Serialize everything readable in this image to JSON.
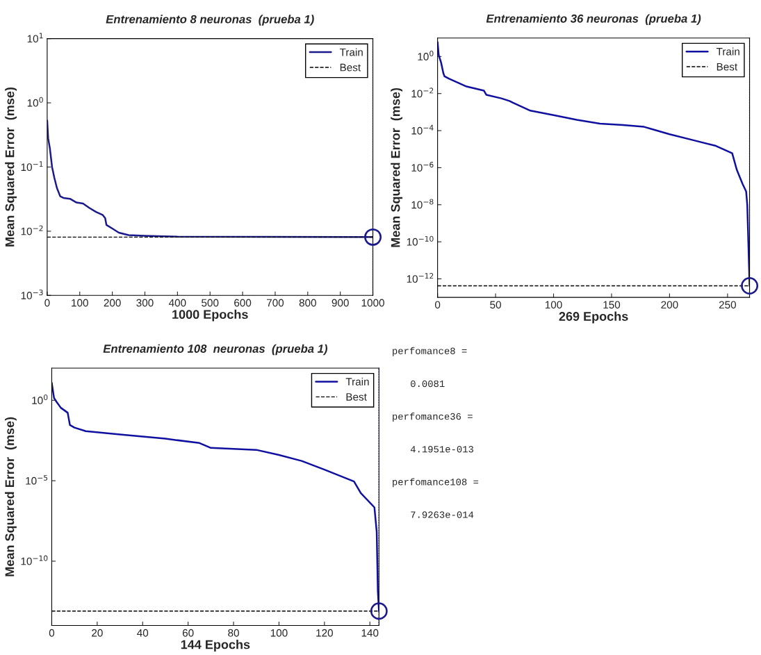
{
  "chart_data": [
    {
      "type": "line",
      "title": "Entrenamiento 8 neuronas  (prueba 1)",
      "xlabel": "1000 Epochs",
      "ylabel": "Mean Squared Error  (mse)",
      "log": "y",
      "legend": "top right",
      "xlim": [
        0,
        1000
      ],
      "xticks": [
        0,
        100,
        200,
        300,
        400,
        500,
        600,
        700,
        800,
        900,
        1000
      ],
      "ylim": [
        0.001,
        10
      ],
      "yticks": [
        {
          "value": 0.001,
          "label": "10$^{−3}$"
        },
        {
          "value": 0.01,
          "label": "10$^{−2}$"
        },
        {
          "value": 0.1,
          "label": "10$^{−1}$"
        },
        {
          "value": 1,
          "label": "10$^{0}$"
        },
        {
          "value": 10,
          "label": "10$^{1}$"
        }
      ],
      "series": [
        {
          "name": "Train",
          "type": "line",
          "color": "#1a1a8c",
          "x": [
            0,
            3,
            8,
            15,
            22,
            30,
            40,
            50,
            70,
            90,
            110,
            130,
            150,
            170,
            178,
            182,
            200,
            220,
            250,
            300,
            400,
            1000
          ],
          "values": [
            0.53,
            0.28,
            0.2,
            0.1,
            0.068,
            0.047,
            0.035,
            0.033,
            0.032,
            0.028,
            0.027,
            0.023,
            0.02,
            0.018,
            0.016,
            0.0125,
            0.011,
            0.0095,
            0.0087,
            0.0085,
            0.0082,
            0.0081
          ]
        },
        {
          "type": "scatter",
          "marker": "circle",
          "color": "#1a1a8c",
          "x": [
            1000
          ],
          "values": [
            0.0081
          ]
        }
      ],
      "ref_lines": [
        {
          "axis": "y",
          "value": 0.0081,
          "label": "Best",
          "color": "#000000",
          "line_style": "dashed"
        },
        {
          "axis": "x",
          "value": 1000,
          "color": "#000080",
          "line_style": "dotted"
        }
      ]
    },
    {
      "type": "line",
      "title": "Entrenamiento 36 neuronas  (prueba 1)",
      "xlabel": "269 Epochs",
      "ylabel": "Mean Squared Error  (mse)",
      "log": "y",
      "legend": "top right",
      "xlim": [
        0,
        269
      ],
      "xticks": [
        0,
        50,
        100,
        150,
        200,
        250
      ],
      "ylim": [
        1e-13,
        10
      ],
      "yticks": [
        {
          "value": 1e-12,
          "label": "10$^{−12}$"
        },
        {
          "value": 1e-10,
          "label": "10$^{−10}$"
        },
        {
          "value": 1e-08,
          "label": "10$^{−8}$"
        },
        {
          "value": 1e-06,
          "label": "10$^{−6}$"
        },
        {
          "value": 0.0001,
          "label": "10$^{−4}$"
        },
        {
          "value": 0.01,
          "label": "10$^{−2}$"
        },
        {
          "value": 1,
          "label": "10$^{0}$"
        }
      ],
      "series": [
        {
          "name": "Train",
          "type": "line",
          "color": "#1010a0",
          "x": [
            0,
            1,
            3,
            5,
            6,
            10,
            20,
            25,
            40,
            42,
            55,
            62,
            65,
            80,
            100,
            120,
            140,
            160,
            178,
            185,
            200,
            220,
            240,
            254,
            258,
            263,
            266,
            267,
            269
          ],
          "values": [
            5.9,
            1.2,
            0.48,
            0.125,
            0.085,
            0.063,
            0.033,
            0.024,
            0.0143,
            0.0086,
            0.0055,
            0.004,
            0.0032,
            0.0012,
            0.00069,
            0.00038,
            0.00024,
            0.0002,
            0.00016,
            0.00012,
            6.4e-05,
            3.1e-05,
            1.5e-05,
            6e-06,
            7.6e-07,
            1.3e-07,
            5.3e-08,
            1e-08,
            4.1951e-13
          ]
        },
        {
          "type": "scatter",
          "marker": "circle",
          "color": "#1a1a8c",
          "x": [
            269
          ],
          "values": [
            4.1951e-13
          ]
        }
      ],
      "ref_lines": [
        {
          "axis": "y",
          "value": 4.1951e-13,
          "label": "Best",
          "color": "#000000",
          "line_style": "dashed"
        },
        {
          "axis": "x",
          "value": 269,
          "color": "#000080",
          "line_style": "dotted"
        }
      ]
    },
    {
      "type": "line",
      "title": "Entrenamiento 108  neuronas  (prueba 1)",
      "xlabel": "144 Epochs",
      "ylabel": "Mean Squared Error  (mse)",
      "log": "y",
      "legend": "top right",
      "xlim": [
        0,
        144
      ],
      "xticks": [
        0,
        20,
        40,
        60,
        80,
        100,
        120,
        140
      ],
      "ylim": [
        1e-14,
        100
      ],
      "yticks": [
        {
          "value": 1e-10,
          "label": "10$^{−10}$"
        },
        {
          "value": 1e-05,
          "label": "10$^{−5}$"
        },
        {
          "value": 1,
          "label": "10$^{0}$"
        }
      ],
      "series": [
        {
          "name": "Train",
          "type": "line",
          "color": "#1010a0",
          "x": [
            0,
            1,
            2,
            4,
            7,
            8,
            10,
            15,
            30,
            50,
            65,
            70,
            90,
            100,
            110,
            120,
            133,
            136,
            142,
            143,
            143.5,
            144
          ],
          "values": [
            12,
            1.4,
            0.84,
            0.34,
            0.17,
            0.029,
            0.02,
            0.012,
            0.0075,
            0.0041,
            0.0022,
            0.0011,
            0.00083,
            0.0004,
            0.00017,
            4.9e-05,
            9e-06,
            1.7e-06,
            2.2e-07,
            6.6e-09,
            1.4e-12,
            7.9263e-14
          ]
        },
        {
          "type": "scatter",
          "marker": "circle",
          "color": "#1a1a8c",
          "x": [
            144
          ],
          "values": [
            7.9263e-14
          ]
        }
      ],
      "ref_lines": [
        {
          "axis": "y",
          "value": 7.9263e-14,
          "label": "Best",
          "color": "#000000",
          "line_style": "dashed"
        },
        {
          "axis": "x",
          "value": 144,
          "color": "#000080",
          "line_style": "dotted"
        }
      ]
    },
    {
      "type": "other",
      "annotations": [
        "perfomance8 =",
        "0.0081",
        "perfomance36 =",
        "4.1951e-013",
        "perfomance108 =",
        "7.9263e-014"
      ]
    }
  ]
}
